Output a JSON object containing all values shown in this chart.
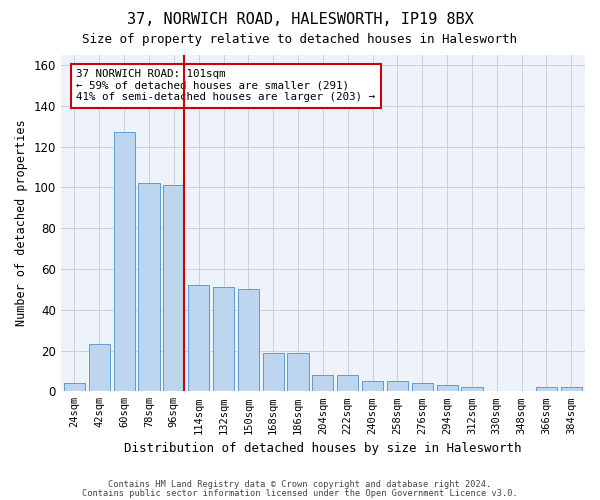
{
  "title": "37, NORWICH ROAD, HALESWORTH, IP19 8BX",
  "subtitle": "Size of property relative to detached houses in Halesworth",
  "xlabel": "Distribution of detached houses by size in Halesworth",
  "ylabel": "Number of detached properties",
  "bar_values": [
    4,
    23,
    127,
    102,
    101,
    52,
    51,
    50,
    19,
    19,
    8,
    8,
    5,
    5,
    4,
    3,
    2,
    0,
    0,
    2,
    2
  ],
  "bar_labels": [
    "24sqm",
    "42sqm",
    "60sqm",
    "78sqm",
    "96sqm",
    "114sqm",
    "132sqm",
    "150sqm",
    "168sqm",
    "186sqm",
    "204sqm",
    "222sqm",
    "240sqm",
    "258sqm",
    "276sqm",
    "294sqm",
    "312sqm",
    "330sqm",
    "348sqm",
    "366sqm",
    "384sqm"
  ],
  "bar_color": "#bdd5ee",
  "bar_edge_color": "#5b9bd5",
  "vline_x": 4.42,
  "vline_color": "#cc0000",
  "annotation_text": "37 NORWICH ROAD: 101sqm\n← 59% of detached houses are smaller (291)\n41% of semi-detached houses are larger (203) →",
  "annotation_box_color": "#ffffff",
  "annotation_box_edge": "#cc0000",
  "ylim": [
    0,
    165
  ],
  "yticks": [
    0,
    20,
    40,
    60,
    80,
    100,
    120,
    140,
    160
  ],
  "footer_line1": "Contains HM Land Registry data © Crown copyright and database right 2024.",
  "footer_line2": "Contains public sector information licensed under the Open Government Licence v3.0.",
  "bg_color": "#eef2fb",
  "grid_color": "#c8d0e0"
}
